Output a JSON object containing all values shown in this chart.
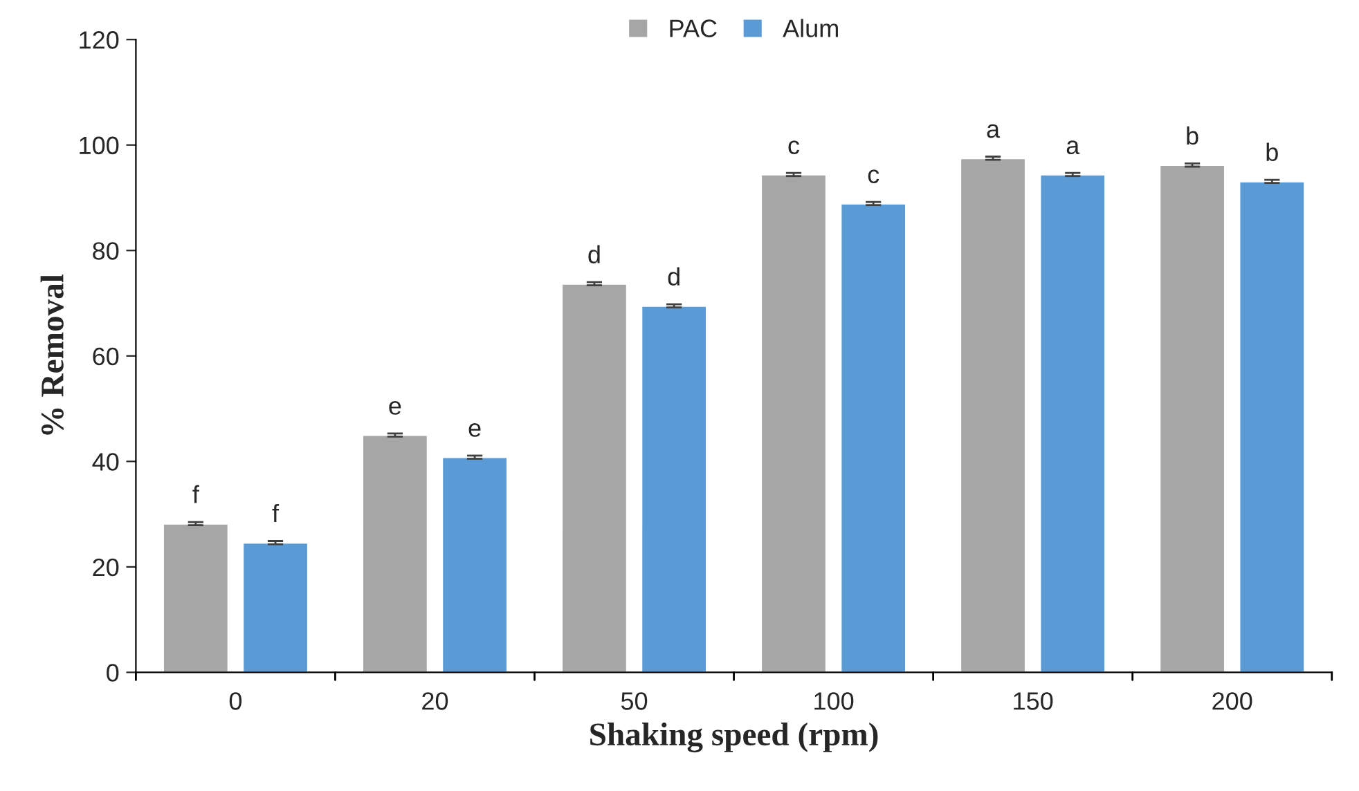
{
  "chart_data": {
    "type": "bar",
    "xlabel": "Shaking speed (rpm)",
    "ylabel": "% Removal",
    "categories": [
      "0",
      "20",
      "50",
      "100",
      "150",
      "200"
    ],
    "series": [
      {
        "name": "PAC",
        "color": "#a6a6a6",
        "values": [
          28.2,
          45.0,
          73.7,
          94.4,
          97.5,
          96.2
        ],
        "errors": [
          0.3,
          0.3,
          0.3,
          0.3,
          0.3,
          0.3
        ],
        "value_labels": [
          "f",
          "e",
          "d",
          "c",
          "a",
          "b"
        ]
      },
      {
        "name": "Alum",
        "color": "#5b9bd5",
        "values": [
          24.6,
          40.8,
          69.5,
          88.9,
          94.4,
          93.1
        ],
        "errors": [
          0.3,
          0.3,
          0.3,
          0.3,
          0.3,
          0.3
        ],
        "value_labels": [
          "f",
          "e",
          "d",
          "c",
          "a",
          "b"
        ]
      }
    ],
    "ylim": [
      0,
      120
    ],
    "yticks": [
      0,
      20,
      40,
      60,
      80,
      100,
      120
    ],
    "grid": false,
    "legend": "top"
  }
}
